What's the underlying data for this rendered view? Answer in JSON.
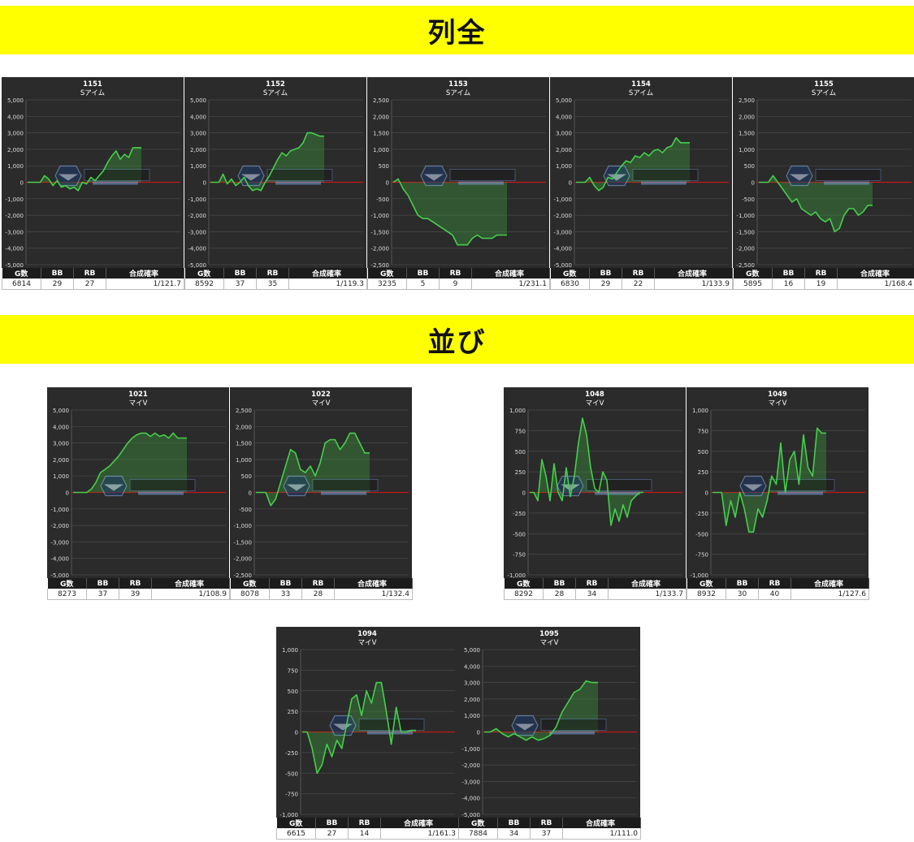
{
  "sections": [
    {
      "title": "列全"
    },
    {
      "title": "並び"
    }
  ],
  "table_headers": [
    "G数",
    "BB",
    "RB",
    "合成確率"
  ],
  "colors": {
    "banner": "#ffff00",
    "line": "#44d04a",
    "fill": "#3c8c3c",
    "zero_line": "#c0191b",
    "background": "#2b2b2b"
  },
  "chart_data": [
    {
      "type": "line",
      "title": "1151",
      "subtitle": "Sアイム",
      "ylim": [
        -5000,
        5000
      ],
      "yticks": [
        "5,000",
        "4,000",
        "3,000",
        "2,000",
        "1,000",
        "0",
        "-1,000",
        "-2,000",
        "-3,000",
        "-4,000",
        "-5,000"
      ],
      "values": [
        0,
        0,
        0,
        0,
        400,
        200,
        -200,
        100,
        -300,
        -200,
        -400,
        -300,
        -500,
        0,
        -100,
        300,
        100,
        400,
        700,
        1200,
        1600,
        1900,
        1400,
        1700,
        1500,
        2100,
        2100,
        2100
      ],
      "stats": {
        "games": "6814",
        "bb": "29",
        "rb": "27",
        "rate": "1/121.7"
      }
    },
    {
      "type": "line",
      "title": "1152",
      "subtitle": "Sアイム",
      "ylim": [
        -5000,
        5000
      ],
      "yticks": [
        "5,000",
        "4,000",
        "3,000",
        "2,000",
        "1,000",
        "0",
        "-1,000",
        "-2,000",
        "-3,000",
        "-4,000",
        "-5,000"
      ],
      "values": [
        0,
        0,
        0,
        500,
        -100,
        200,
        -200,
        0,
        300,
        -200,
        -500,
        -400,
        -500,
        0,
        400,
        900,
        1400,
        1800,
        1600,
        1900,
        2000,
        2100,
        2400,
        3000,
        3000,
        2900,
        2800,
        2800
      ],
      "stats": {
        "games": "8592",
        "bb": "37",
        "rb": "35",
        "rate": "1/119.3"
      }
    },
    {
      "type": "line",
      "title": "1153",
      "subtitle": "Sアイム",
      "ylim": [
        -2500,
        2500
      ],
      "yticks": [
        "2,500",
        "2,000",
        "1,500",
        "1,000",
        "500",
        "0",
        "-500",
        "-1,000",
        "-1,500",
        "-2,000",
        "-2,500"
      ],
      "values": [
        0,
        100,
        -200,
        -400,
        -700,
        -1000,
        -1100,
        -1100,
        -1200,
        -1300,
        -1400,
        -1500,
        -1600,
        -1900,
        -1900,
        -1900,
        -1700,
        -1600,
        -1700,
        -1700,
        -1700,
        -1600,
        -1600,
        -1600
      ],
      "stats": {
        "games": "3235",
        "bb": "5",
        "rb": "9",
        "rate": "1/231.1"
      }
    },
    {
      "type": "line",
      "title": "1154",
      "subtitle": "Sアイム",
      "ylim": [
        -5000,
        5000
      ],
      "yticks": [
        "5,000",
        "4,000",
        "3,000",
        "2,000",
        "1,000",
        "0",
        "-1,000",
        "-2,000",
        "-3,000",
        "-4,000",
        "-5,000"
      ],
      "values": [
        0,
        0,
        0,
        300,
        -200,
        -500,
        -300,
        300,
        200,
        600,
        1000,
        1300,
        1200,
        1600,
        1500,
        1800,
        1600,
        1900,
        2000,
        1800,
        2100,
        2200,
        2700,
        2400,
        2400,
        2400
      ],
      "stats": {
        "games": "6830",
        "bb": "29",
        "rb": "22",
        "rate": "1/133.9"
      }
    },
    {
      "type": "line",
      "title": "1155",
      "subtitle": "Sアイム",
      "ylim": [
        -2500,
        2500
      ],
      "yticks": [
        "2,500",
        "2,000",
        "1,500",
        "1,000",
        "500",
        "0",
        "-500",
        "-1,000",
        "-1,500",
        "-2,000",
        "-2,500"
      ],
      "values": [
        0,
        0,
        0,
        200,
        0,
        -200,
        -400,
        -600,
        -500,
        -800,
        -900,
        -1000,
        -900,
        -1100,
        -1200,
        -1100,
        -1500,
        -1400,
        -1000,
        -800,
        -800,
        -1000,
        -900,
        -700,
        -700
      ],
      "stats": {
        "games": "5895",
        "bb": "16",
        "rb": "19",
        "rate": "1/168.4"
      }
    },
    {
      "type": "line",
      "title": "1021",
      "subtitle": "マイV",
      "ylim": [
        -5000,
        5000
      ],
      "yticks": [
        "5,000",
        "4,000",
        "3,000",
        "2,000",
        "1,000",
        "0",
        "-1,000",
        "-2,000",
        "-3,000",
        "-4,000",
        "-5,000"
      ],
      "values": [
        0,
        0,
        0,
        0,
        200,
        600,
        1200,
        1400,
        1600,
        1900,
        2200,
        2600,
        3000,
        3300,
        3500,
        3600,
        3600,
        3400,
        3600,
        3400,
        3500,
        3300,
        3600,
        3300,
        3300,
        3300
      ],
      "stats": {
        "games": "8273",
        "bb": "37",
        "rb": "39",
        "rate": "1/108.9"
      }
    },
    {
      "type": "line",
      "title": "1022",
      "subtitle": "マイV",
      "ylim": [
        -2500,
        2500
      ],
      "yticks": [
        "2,500",
        "2,000",
        "1,500",
        "1,000",
        "500",
        "0",
        "-500",
        "-1,000",
        "-1,500",
        "-2,000",
        "-2,500"
      ],
      "values": [
        0,
        0,
        0,
        -400,
        -200,
        300,
        800,
        1300,
        1200,
        700,
        600,
        800,
        500,
        900,
        1500,
        1600,
        1600,
        1300,
        1500,
        1800,
        1800,
        1500,
        1200,
        1200
      ],
      "stats": {
        "games": "8078",
        "bb": "33",
        "rb": "28",
        "rate": "1/132.4"
      }
    },
    {
      "type": "line",
      "title": "1048",
      "subtitle": "マイV",
      "ylim": [
        -1000,
        1000
      ],
      "yticks": [
        "1,000",
        "750",
        "500",
        "250",
        "0",
        "-250",
        "-500",
        "-750",
        "-1,000"
      ],
      "values": [
        0,
        0,
        -100,
        400,
        200,
        -100,
        350,
        0,
        -100,
        300,
        -50,
        200,
        600,
        900,
        700,
        300,
        50,
        0,
        250,
        150,
        -400,
        -200,
        -350,
        -150,
        -300,
        -100,
        -50,
        0,
        0
      ],
      "stats": {
        "games": "8292",
        "bb": "28",
        "rb": "34",
        "rate": "1/133.7"
      }
    },
    {
      "type": "line",
      "title": "1049",
      "subtitle": "マイV",
      "ylim": [
        -1000,
        1000
      ],
      "yticks": [
        "1,000",
        "750",
        "500",
        "250",
        "0",
        "-250",
        "-500",
        "-750",
        "-1,000"
      ],
      "values": [
        0,
        0,
        0,
        -400,
        -100,
        -300,
        0,
        -200,
        -480,
        -480,
        -200,
        -300,
        -100,
        200,
        100,
        600,
        0,
        400,
        500,
        100,
        700,
        300,
        200,
        780,
        720,
        720
      ],
      "stats": {
        "games": "8932",
        "bb": "30",
        "rb": "40",
        "rate": "1/127.6"
      }
    },
    {
      "type": "line",
      "title": "1094",
      "subtitle": "マイV",
      "ylim": [
        -1000,
        1000
      ],
      "yticks": [
        "1,000",
        "750",
        "500",
        "250",
        "0",
        "-250",
        "-500",
        "-750",
        "-1,000"
      ],
      "values": [
        0,
        0,
        -200,
        -500,
        -400,
        -150,
        -300,
        -100,
        -200,
        100,
        400,
        450,
        200,
        500,
        350,
        600,
        600,
        250,
        -150,
        300,
        0,
        0,
        20,
        20
      ],
      "stats": {
        "games": "6615",
        "bb": "27",
        "rb": "14",
        "rate": "1/161.3"
      }
    },
    {
      "type": "line",
      "title": "1095",
      "subtitle": "マイV",
      "ylim": [
        -5000,
        5000
      ],
      "yticks": [
        "5,000",
        "4,000",
        "3,000",
        "2,000",
        "1,000",
        "0",
        "-1,000",
        "-2,000",
        "-3,000",
        "-4,000",
        "-5,000"
      ],
      "values": [
        0,
        0,
        200,
        -100,
        -300,
        -100,
        -300,
        -500,
        -300,
        -500,
        -400,
        -200,
        300,
        1200,
        1800,
        2400,
        2600,
        3100,
        3000,
        3000
      ],
      "stats": {
        "games": "7884",
        "bb": "34",
        "rb": "37",
        "rate": "1/111.0"
      }
    }
  ]
}
